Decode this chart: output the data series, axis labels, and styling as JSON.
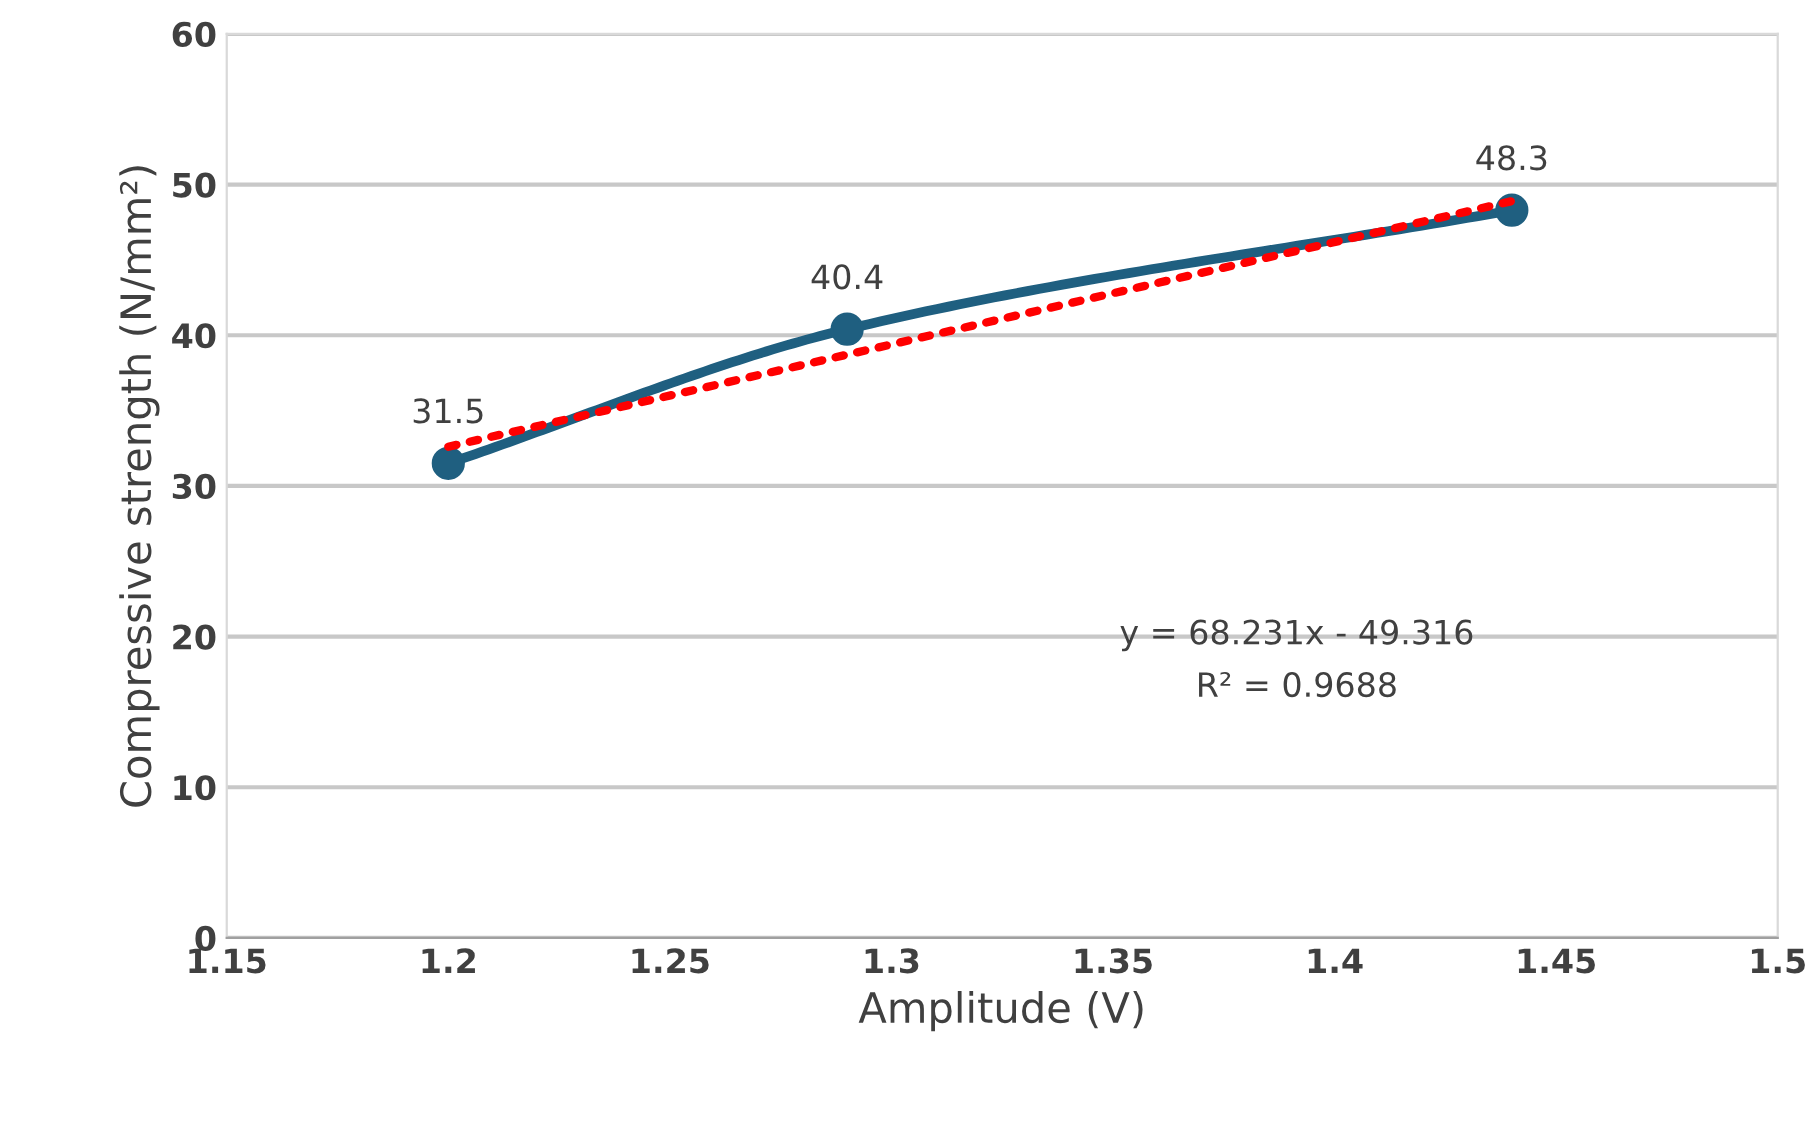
{
  "chart_data": {
    "type": "line",
    "xlabel": "Amplitude (V)",
    "ylabel": "Compressive strength (N/mm²)",
    "series": [
      {
        "color": "#1f5f80",
        "x": [
          1.2,
          1.29,
          1.44
        ],
        "values": [
          31.5,
          40.4,
          48.3
        ],
        "marker": "circle",
        "line_style": "solid",
        "data_labels": true
      },
      {
        "color": "#ff0000",
        "x": [
          1.2,
          1.44
        ],
        "values": [
          32.6,
          48.9
        ],
        "marker": "none",
        "line_style": "dotted"
      }
    ],
    "xlim": [
      1.15,
      1.5
    ],
    "xticks": [
      1.15,
      1.2,
      1.25,
      1.3,
      1.35,
      1.4,
      1.45,
      1.5
    ],
    "ylim": [
      0,
      60
    ],
    "yticks": [
      0,
      10,
      20,
      30,
      40,
      50,
      60
    ],
    "grid": "y",
    "legend": false,
    "annotations": [
      "y = 68.231x - 49.316",
      "R² = 0.9688"
    ]
  }
}
